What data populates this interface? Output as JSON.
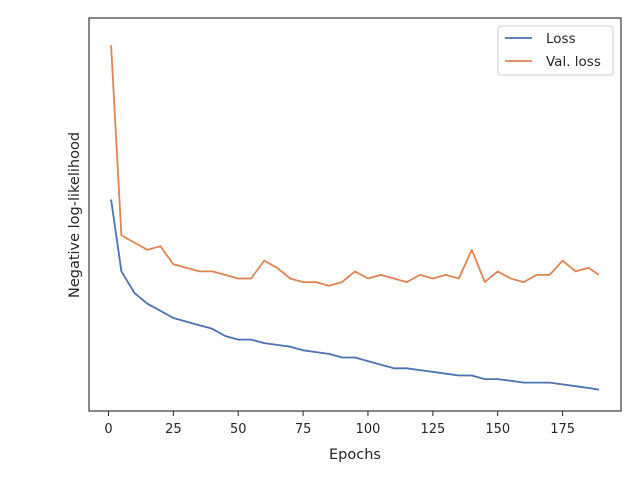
{
  "chart_data": {
    "type": "line",
    "title": "",
    "xlabel": "Epochs",
    "ylabel": "Negative log-likelihood",
    "xlim": [
      -7.5,
      197.5
    ],
    "ylim": [
      0.0,
      1.0
    ],
    "y_tick_labels_shown": false,
    "grid": false,
    "legend_position": "top-right",
    "x_ticks": [
      0,
      25,
      50,
      75,
      100,
      125,
      150,
      175
    ],
    "x_tick_labels": [
      "0",
      "25",
      "50",
      "75",
      "100",
      "125",
      "150",
      "175"
    ],
    "series": [
      {
        "name": "Loss",
        "color": "#4c72b0",
        "x": [
          1,
          5,
          10,
          15,
          20,
          25,
          30,
          35,
          40,
          45,
          50,
          55,
          60,
          65,
          70,
          75,
          80,
          85,
          90,
          95,
          100,
          105,
          110,
          115,
          120,
          125,
          130,
          135,
          140,
          145,
          150,
          155,
          160,
          165,
          170,
          175,
          180,
          185,
          189
        ],
        "y": [
          0.55,
          0.35,
          0.29,
          0.26,
          0.24,
          0.22,
          0.21,
          0.2,
          0.19,
          0.17,
          0.16,
          0.16,
          0.15,
          0.145,
          0.14,
          0.13,
          0.125,
          0.12,
          0.11,
          0.11,
          0.1,
          0.09,
          0.08,
          0.08,
          0.075,
          0.07,
          0.065,
          0.06,
          0.06,
          0.05,
          0.05,
          0.045,
          0.04,
          0.04,
          0.04,
          0.035,
          0.03,
          0.025,
          0.02
        ]
      },
      {
        "name": "Val. loss",
        "color": "#dd8452",
        "x": [
          1,
          5,
          10,
          15,
          20,
          25,
          30,
          35,
          40,
          45,
          50,
          55,
          60,
          65,
          70,
          75,
          80,
          85,
          90,
          95,
          100,
          105,
          110,
          115,
          120,
          125,
          130,
          135,
          140,
          145,
          150,
          155,
          160,
          165,
          170,
          175,
          180,
          185,
          189
        ],
        "y": [
          0.98,
          0.45,
          0.43,
          0.41,
          0.42,
          0.37,
          0.36,
          0.35,
          0.35,
          0.34,
          0.33,
          0.33,
          0.38,
          0.36,
          0.33,
          0.32,
          0.32,
          0.31,
          0.32,
          0.35,
          0.33,
          0.34,
          0.33,
          0.32,
          0.34,
          0.33,
          0.34,
          0.33,
          0.41,
          0.32,
          0.35,
          0.33,
          0.32,
          0.34,
          0.34,
          0.38,
          0.35,
          0.36,
          0.34
        ]
      }
    ]
  }
}
